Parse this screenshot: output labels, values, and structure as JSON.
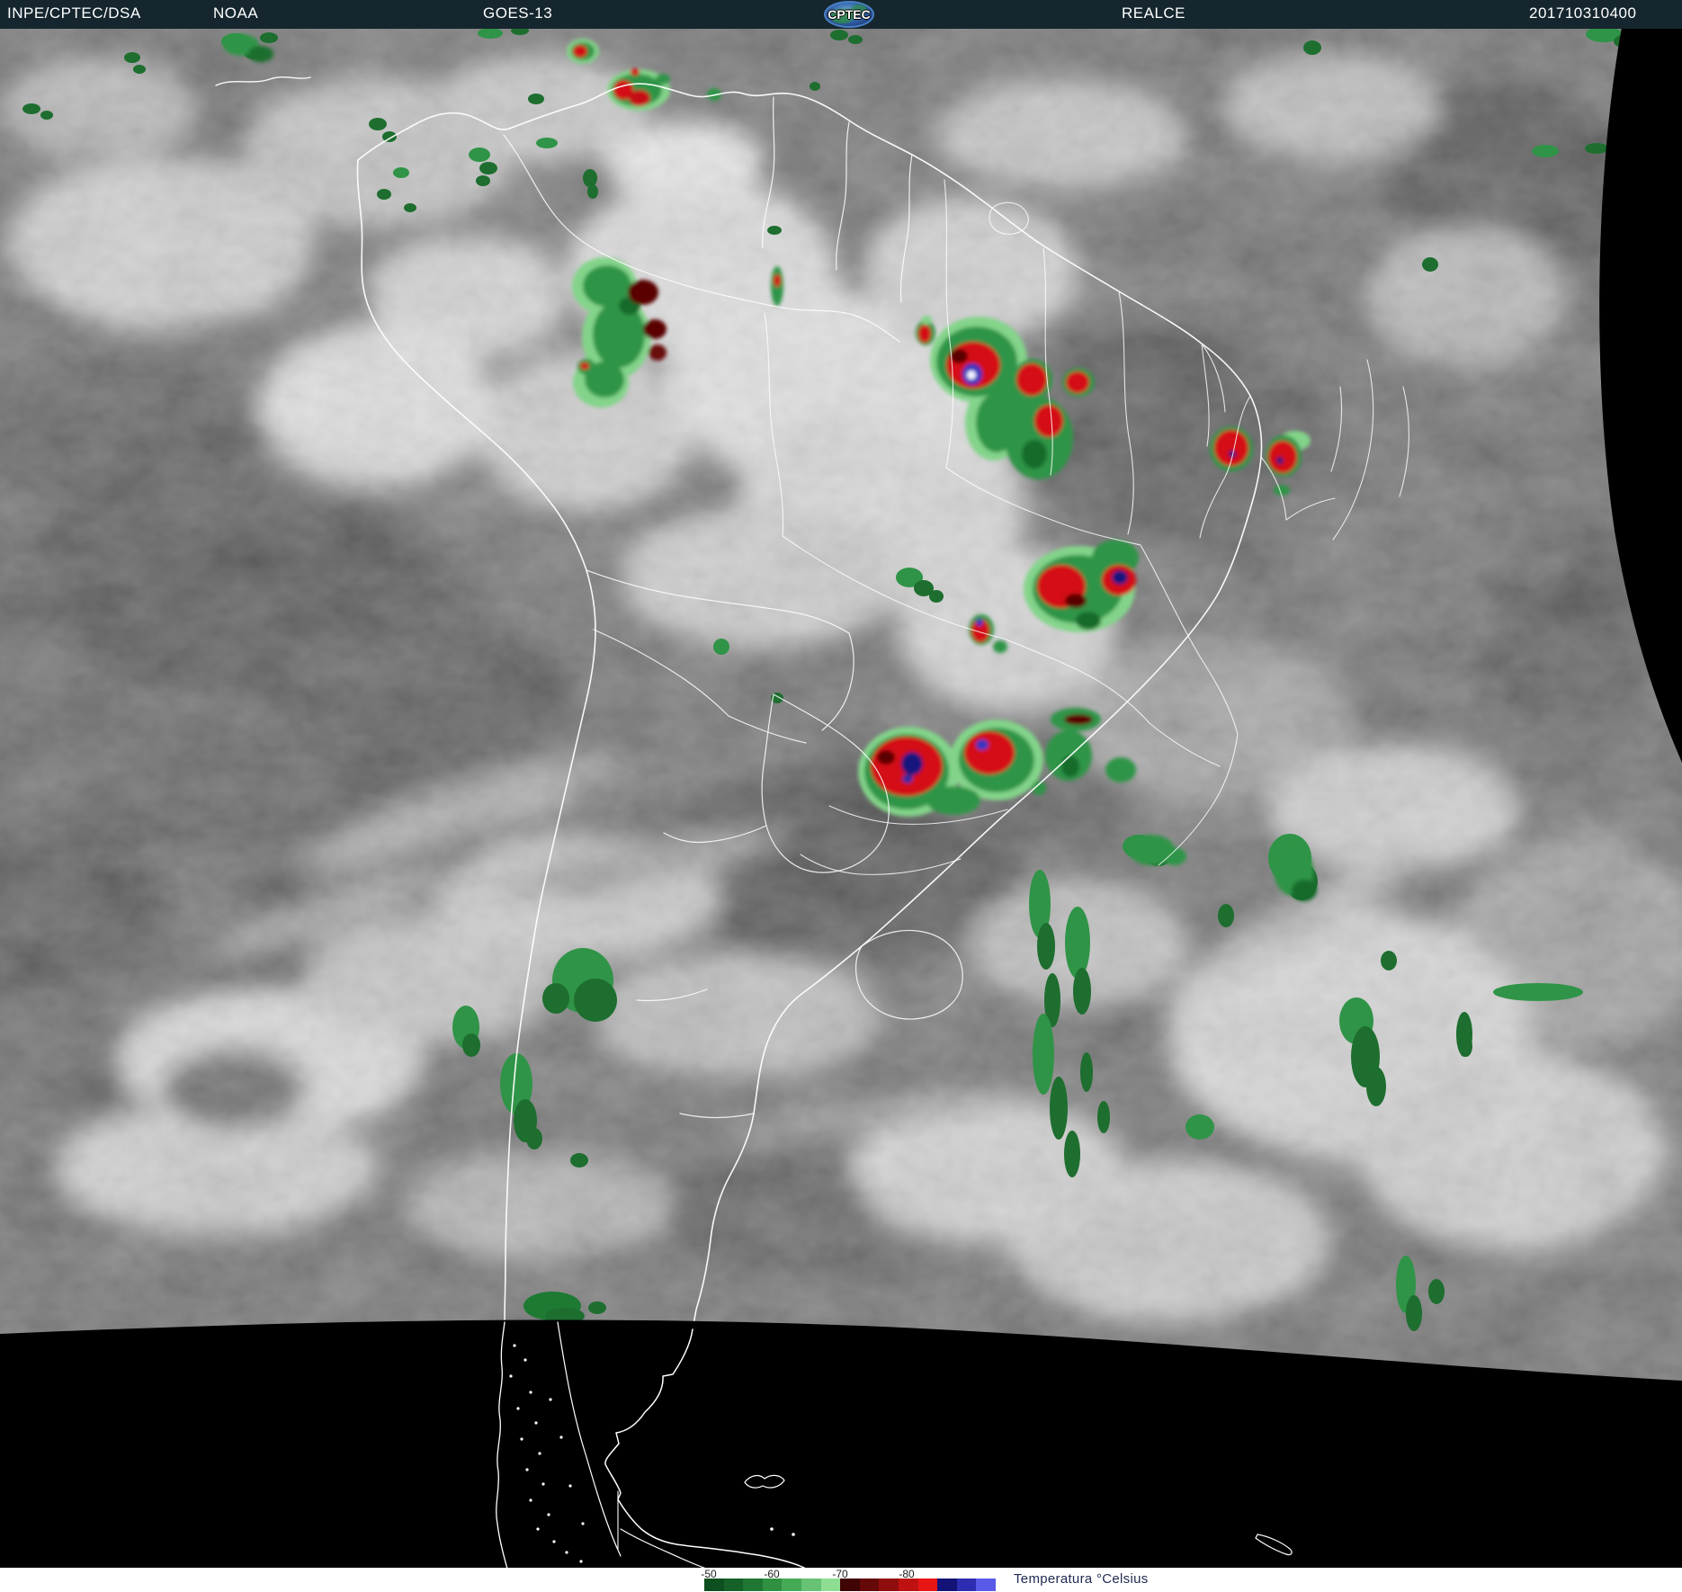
{
  "header": {
    "agency": "INPE/CPTEC/DSA",
    "org": "NOAA",
    "satellite": "GOES-13",
    "logo_text": "CPTEC",
    "product": "REALCE",
    "timestamp": "201710310400",
    "bg_color": "#15262e",
    "text_color": "#ffffff"
  },
  "legend": {
    "ticks": [
      "-50",
      "-60",
      "-70",
      "-80"
    ],
    "title": "Temperatura °Celsius",
    "title_color": "#222c52",
    "bg_color": "#ffffff",
    "colorbar_colors": [
      "#0d4f1e",
      "#166127",
      "#1f7733",
      "#2e9040",
      "#46a956",
      "#68c276",
      "#8edd92",
      "#400404",
      "#650808",
      "#900d0d",
      "#bf1111",
      "#e81515",
      "#121277",
      "#2d2db2",
      "#5a5ae8"
    ]
  },
  "map": {
    "enhancement_palette": {
      "cold_green": "#2f9447",
      "colder_red": "#d40f16",
      "dark_red_core": "#5a0606",
      "coldest_blue": "#3434bf",
      "extreme_white": "#f4f4ff",
      "cloud_gray": "#9a9a9a",
      "space_black": "#000000",
      "border_lines": "#ffffff"
    }
  }
}
